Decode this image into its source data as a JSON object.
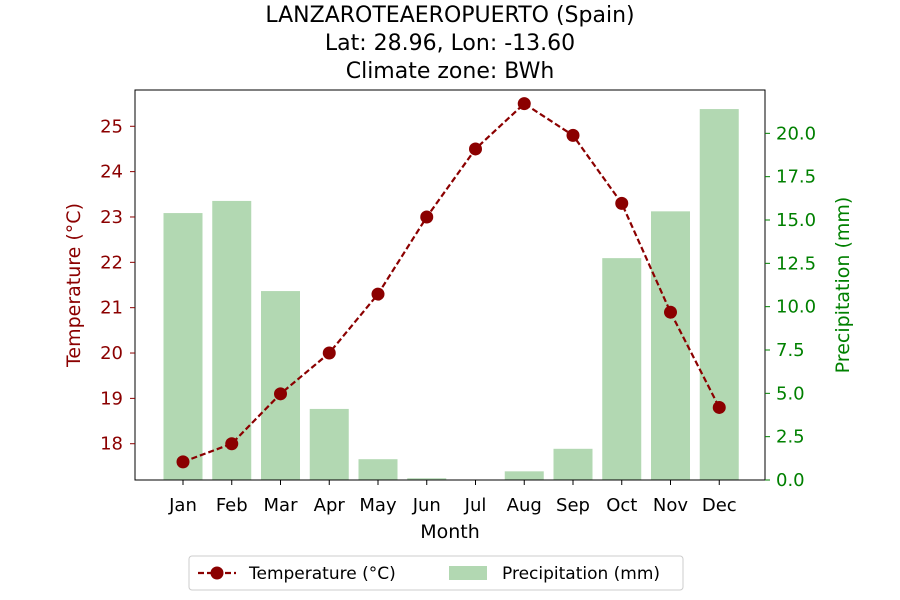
{
  "chart_data": {
    "type": "bar",
    "title_lines": [
      "LANZAROTEAEROPUERTO (Spain)",
      "Lat: 28.96, Lon: -13.60",
      "Climate zone: BWh"
    ],
    "xlabel": "Month",
    "categories": [
      "Jan",
      "Feb",
      "Mar",
      "Apr",
      "May",
      "Jun",
      "Jul",
      "Aug",
      "Sep",
      "Oct",
      "Nov",
      "Dec"
    ],
    "temperature": {
      "name": "Temperature (°C)",
      "axis_label": "Temperature (°C)",
      "color": "#8b0000",
      "values": [
        17.6,
        18.0,
        19.1,
        20.0,
        21.3,
        23.0,
        24.5,
        25.5,
        24.8,
        23.3,
        20.9,
        18.8
      ],
      "ylim": [
        17.2,
        25.8
      ],
      "ticks": [
        18,
        19,
        20,
        21,
        22,
        23,
        24,
        25
      ]
    },
    "precipitation": {
      "name": "Precipitation (mm)",
      "axis_label": "Precipitation (mm)",
      "color": "#2ca02c",
      "bar_color": "#b2d8b2",
      "values": [
        15.4,
        16.1,
        10.9,
        4.1,
        1.2,
        0.1,
        0.0,
        0.5,
        1.8,
        12.8,
        15.5,
        21.4
      ],
      "ylim": [
        0,
        22.5
      ],
      "ticks": [
        0.0,
        2.5,
        5.0,
        7.5,
        10.0,
        12.5,
        15.0,
        17.5,
        20.0
      ],
      "tick_labels": [
        "0.0",
        "2.5",
        "5.0",
        "7.5",
        "10.0",
        "12.5",
        "15.0",
        "17.5",
        "20.0"
      ]
    },
    "legend_position": "bottom-center",
    "grid": false
  }
}
